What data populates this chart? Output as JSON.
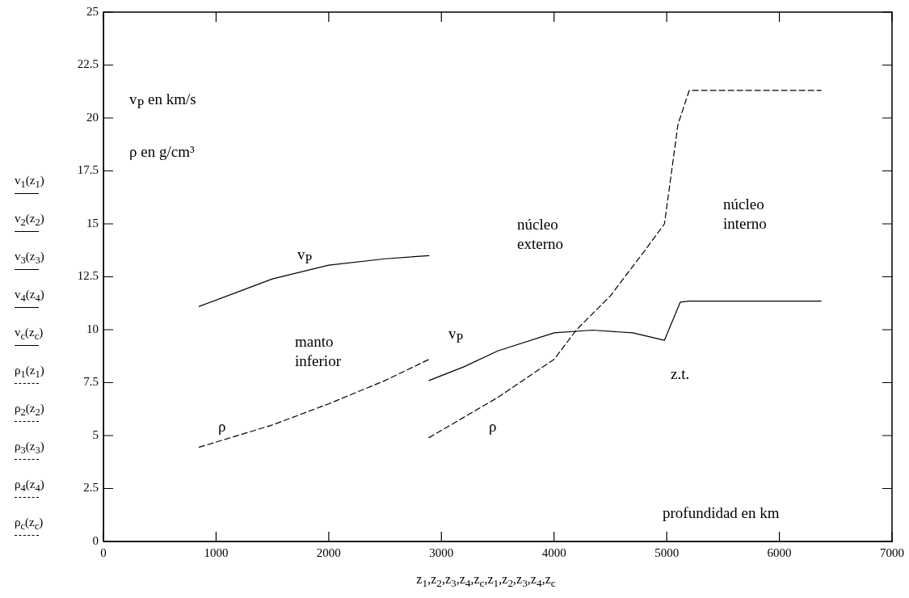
{
  "chart_data": {
    "type": "line",
    "xlabel": "z$_{1}$,z$_{2}$,z$_{3}$,z$_{4}$,z$_{c}$,z$_{1}$,z$_{2}$,z$_{3}$,z$_{4}$,z$_{c}$",
    "ylabel": "v$_{1}$(z$_{1}$)\nv$_{2}$(z$_{2}$)\nv$_{3}$(z$_{3}$)\nv$_{4}$(z$_{4}$)\nv$_{c}$(z$_{c}$)\nρ$_{1}$(z$_{1}$)\nρ$_{2}$(z$_{2}$)\nρ$_{3}$(z$_{3}$)\nρ$_{4}$(z$_{4}$)\nρ$_{c}$(z$_{c}$)",
    "marker": "none",
    "xlim": [
      0,
      7000
    ],
    "xticks": [
      0,
      1000,
      2000,
      3000,
      4000,
      5000,
      6000,
      7000
    ],
    "ylim": [
      0,
      25
    ],
    "yticks": [
      0,
      2.5,
      5,
      7.5,
      10,
      12.5,
      15,
      17.5,
      20,
      22.5,
      25
    ],
    "series": [
      {
        "color": "#000000",
        "line_style": "solid",
        "x": [
          850,
          1200,
          1500,
          2000,
          2500,
          2890
        ],
        "values": [
          11.1,
          11.8,
          12.4,
          13.05,
          13.35,
          13.5
        ]
      },
      {
        "color": "#000000",
        "line_style": "solid",
        "x": [
          2890,
          3200,
          3500,
          4000,
          4340,
          4700,
          4980,
          5120,
          5200,
          6370
        ],
        "values": [
          7.6,
          8.25,
          9.0,
          9.85,
          9.98,
          9.85,
          9.5,
          11.3,
          11.35,
          11.35
        ]
      },
      {
        "color": "#000000",
        "line_style": "dashed",
        "x": [
          850,
          1500,
          2000,
          2500,
          2890
        ],
        "values": [
          4.45,
          5.5,
          6.5,
          7.6,
          8.6
        ]
      },
      {
        "color": "#000000",
        "line_style": "dashed",
        "x": [
          2890,
          3500,
          4000,
          4200,
          4500,
          4800,
          4980,
          5100,
          5200,
          6370
        ],
        "values": [
          4.9,
          6.8,
          8.6,
          10.0,
          11.6,
          13.7,
          15.0,
          19.7,
          21.3,
          21.3
        ]
      }
    ],
    "annotations": [
      "v$_{P}$ en km/s",
      "ρ en g/cm³",
      "v$_{P}$",
      "manto\ninferior",
      "ρ",
      "núcleo\nexterno",
      "v$_{P}$",
      "ρ",
      "núcleo\ninterno",
      "z.t.",
      "profundidad en km"
    ]
  }
}
